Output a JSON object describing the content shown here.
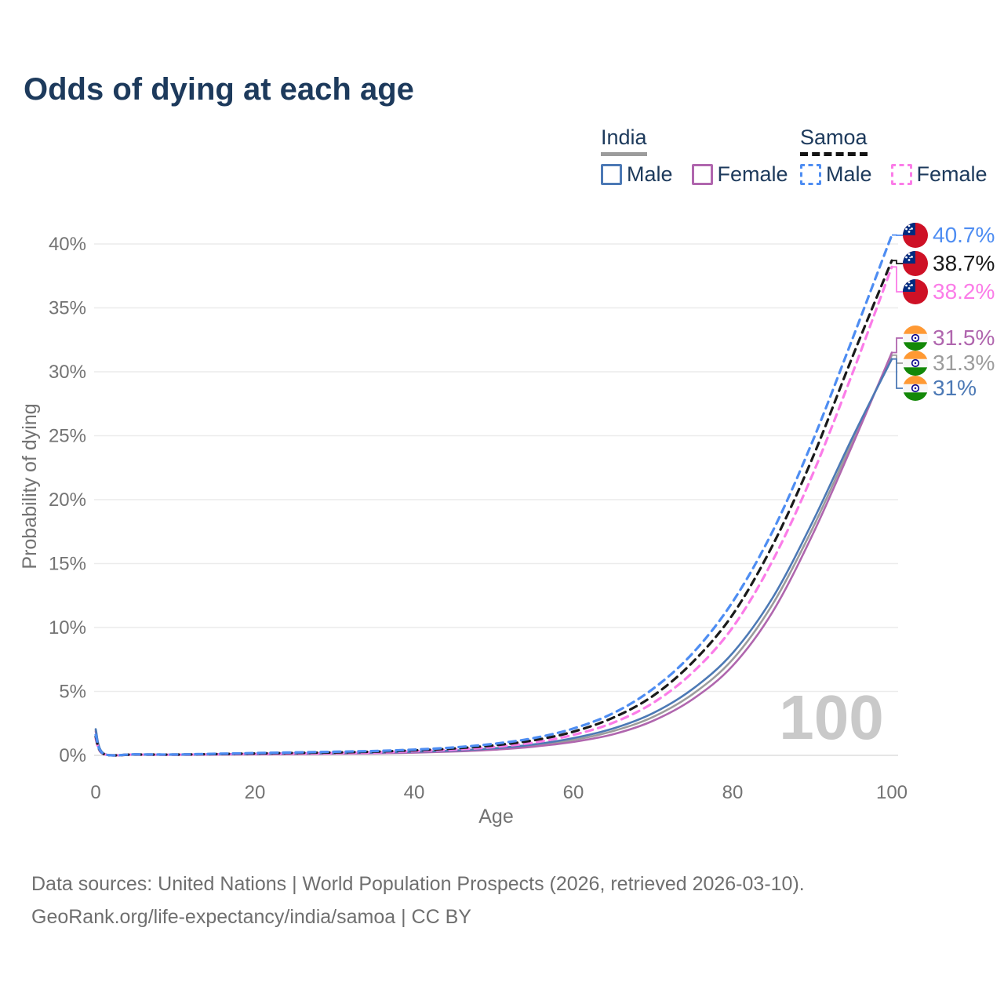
{
  "title": "Odds of dying at each age",
  "watermark": "100",
  "legend": {
    "groups": [
      {
        "label": "India",
        "line_style": "solid",
        "underline_color": "#9c9c9c",
        "items": [
          {
            "label": "Male",
            "series": "india-male"
          },
          {
            "label": "Female",
            "series": "india-female"
          }
        ]
      },
      {
        "label": "Samoa",
        "line_style": "dashed",
        "underline_color": "#141414",
        "items": [
          {
            "label": "Male",
            "series": "samoa-male"
          },
          {
            "label": "Female",
            "series": "samoa-female"
          }
        ]
      }
    ]
  },
  "footer": {
    "line1": "Data sources: United Nations | World Population Prospects (2026, retrieved 2026-03-10).",
    "line2": "GeoRank.org/life-expectancy/india/samoa | CC BY"
  },
  "chart_data": {
    "type": "line",
    "title": "Odds of dying at each age",
    "xlabel": "Age",
    "ylabel": "Probability of dying",
    "xlim": [
      0,
      100
    ],
    "ylim": [
      0,
      42
    ],
    "grid": true,
    "legend_position": "top-right",
    "x_ticks": [
      0,
      20,
      40,
      60,
      80,
      100
    ],
    "y_ticks": [
      {
        "value": 0,
        "label": "0%"
      },
      {
        "value": 5,
        "label": "5%"
      },
      {
        "value": 10,
        "label": "10%"
      },
      {
        "value": 15,
        "label": "15%"
      },
      {
        "value": 20,
        "label": "20%"
      },
      {
        "value": 25,
        "label": "25%"
      },
      {
        "value": 30,
        "label": "30%"
      },
      {
        "value": 35,
        "label": "35%"
      },
      {
        "value": 40,
        "label": "40%"
      }
    ],
    "x": [
      0,
      1,
      5,
      10,
      15,
      20,
      25,
      30,
      35,
      40,
      45,
      50,
      55,
      60,
      65,
      70,
      75,
      80,
      85,
      90,
      95,
      100
    ],
    "series": [
      {
        "id": "samoa-male",
        "name": "Samoa Male",
        "color": "#4e8df2",
        "dash": true,
        "flag": "samoa",
        "end_label": "40.7%",
        "end_value": 40.7,
        "values": [
          1.6,
          0.12,
          0.08,
          0.07,
          0.12,
          0.18,
          0.23,
          0.28,
          0.34,
          0.45,
          0.62,
          0.9,
          1.35,
          2.1,
          3.3,
          5.2,
          8.0,
          12.0,
          17.5,
          24.5,
          32.5,
          40.7
        ]
      },
      {
        "id": "samoa-both",
        "name": "Samoa",
        "color": "#1a1a1a",
        "dash": true,
        "flag": "samoa",
        "end_label": "38.7%",
        "end_value": 38.7,
        "values": [
          1.45,
          0.11,
          0.07,
          0.06,
          0.1,
          0.15,
          0.19,
          0.23,
          0.29,
          0.39,
          0.54,
          0.78,
          1.18,
          1.85,
          2.95,
          4.65,
          7.3,
          11.0,
          16.4,
          23.2,
          31.1,
          38.7
        ]
      },
      {
        "id": "samoa-female",
        "name": "Samoa Female",
        "color": "#fb7ce8",
        "dash": true,
        "flag": "samoa",
        "end_label": "38.2%",
        "end_value": 38.2,
        "values": [
          1.3,
          0.1,
          0.06,
          0.05,
          0.08,
          0.11,
          0.14,
          0.18,
          0.23,
          0.32,
          0.45,
          0.65,
          1.0,
          1.6,
          2.55,
          4.1,
          6.5,
          10.0,
          15.2,
          21.9,
          29.8,
          38.2
        ]
      },
      {
        "id": "india-female",
        "name": "India Female",
        "color": "#b066ae",
        "dash": false,
        "flag": "india",
        "end_label": "31.5%",
        "end_value": 31.5,
        "values": [
          1.85,
          0.14,
          0.06,
          0.04,
          0.06,
          0.08,
          0.1,
          0.13,
          0.16,
          0.21,
          0.3,
          0.44,
          0.68,
          1.05,
          1.65,
          2.7,
          4.4,
          7.0,
          11.2,
          17.2,
          24.2,
          31.5
        ]
      },
      {
        "id": "india-both",
        "name": "India",
        "color": "#9c9c9c",
        "dash": false,
        "flag": "india",
        "end_label": "31.3%",
        "end_value": 31.3,
        "values": [
          1.95,
          0.15,
          0.06,
          0.05,
          0.08,
          0.11,
          0.13,
          0.16,
          0.19,
          0.25,
          0.34,
          0.5,
          0.77,
          1.2,
          1.9,
          3.0,
          4.8,
          7.5,
          11.8,
          17.7,
          24.5,
          31.3
        ]
      },
      {
        "id": "india-male",
        "name": "India Male",
        "color": "#4c79b5",
        "dash": false,
        "flag": "india",
        "end_label": "31%",
        "end_value": 31.0,
        "values": [
          2.05,
          0.15,
          0.07,
          0.05,
          0.09,
          0.13,
          0.16,
          0.18,
          0.22,
          0.28,
          0.38,
          0.55,
          0.85,
          1.35,
          2.1,
          3.3,
          5.2,
          8.0,
          12.3,
          18.2,
          24.8,
          31.0
        ]
      }
    ]
  }
}
